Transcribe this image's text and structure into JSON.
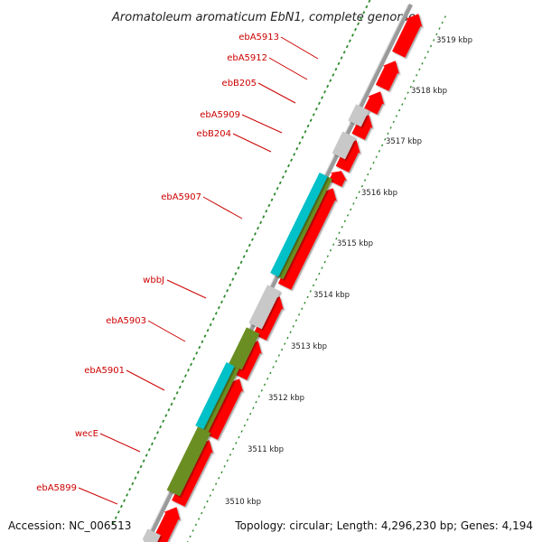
{
  "title": "Aromatoleum aromaticum EbN1, complete genome",
  "accession": "Accession: NC_006513",
  "summary": "Topology: circular; Length: 4,296,230 bp; Genes: 4,194",
  "colors": {
    "red_gene": "#ff0000",
    "gray_gene": "#c8c8c8",
    "olive_gene": "#6b8e23",
    "cyan_gene": "#00c0c8",
    "backbone": "#a0a0a0",
    "dots": "#2e8b2e",
    "label": "#cc0000"
  },
  "scale_ticks": [
    {
      "label": "3510 kbp"
    },
    {
      "label": "3511 kbp"
    },
    {
      "label": "3512 kbp"
    },
    {
      "label": "3513 kbp"
    },
    {
      "label": "3514 kbp"
    },
    {
      "label": "3515 kbp"
    },
    {
      "label": "3516 kbp"
    },
    {
      "label": "3517 kbp"
    },
    {
      "label": "3518 kbp"
    },
    {
      "label": "3519 kbp"
    }
  ],
  "gene_labels": [
    {
      "name": "ebA5913"
    },
    {
      "name": "ebA5912"
    },
    {
      "name": "ebB205"
    },
    {
      "name": "ebA5909"
    },
    {
      "name": "ebB204"
    },
    {
      "name": "ebA5907"
    },
    {
      "name": "wbbJ"
    },
    {
      "name": "ebA5903"
    },
    {
      "name": "ebA5901"
    },
    {
      "name": "wecE"
    },
    {
      "name": "ebA5899"
    }
  ]
}
